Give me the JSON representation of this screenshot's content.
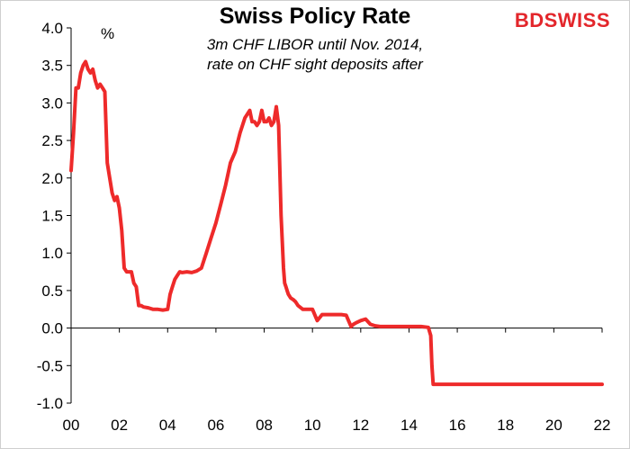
{
  "title": "Swiss Policy Rate",
  "subtitle_line1": "3m CHF LIBOR until Nov. 2014,",
  "subtitle_line2": "rate on CHF sight deposits after",
  "logo": {
    "part1": "BD",
    "part2": "SWISS"
  },
  "chart_data": {
    "type": "line",
    "title": "Swiss Policy Rate",
    "ylabel": "%",
    "xlabel": "",
    "xlim": [
      0,
      22
    ],
    "ylim": [
      -1.0,
      4.0
    ],
    "x_ticks": [
      0,
      2,
      4,
      6,
      8,
      10,
      12,
      14,
      16,
      18,
      20,
      22
    ],
    "x_tick_labels": [
      "00",
      "02",
      "04",
      "06",
      "08",
      "10",
      "12",
      "14",
      "16",
      "18",
      "20",
      "22"
    ],
    "y_ticks": [
      -1.0,
      -0.5,
      0.0,
      0.5,
      1.0,
      1.5,
      2.0,
      2.5,
      3.0,
      3.5,
      4.0
    ],
    "y_tick_labels": [
      "-1.0",
      "-0.5",
      "0.0",
      "0.5",
      "1.0",
      "1.5",
      "2.0",
      "2.5",
      "3.0",
      "3.5",
      "4.0"
    ],
    "line_color": "#ee2a2a",
    "series": [
      {
        "name": "Swiss Policy Rate",
        "x": [
          0.0,
          0.1,
          0.2,
          0.3,
          0.4,
          0.5,
          0.6,
          0.7,
          0.8,
          0.9,
          1.0,
          1.1,
          1.2,
          1.3,
          1.4,
          1.5,
          1.6,
          1.7,
          1.8,
          1.9,
          2.0,
          2.1,
          2.2,
          2.3,
          2.4,
          2.5,
          2.6,
          2.7,
          2.8,
          2.9,
          3.0,
          3.2,
          3.4,
          3.6,
          3.8,
          4.0,
          4.1,
          4.2,
          4.3,
          4.4,
          4.5,
          4.6,
          4.8,
          5.0,
          5.2,
          5.4,
          5.6,
          5.8,
          6.0,
          6.2,
          6.4,
          6.6,
          6.8,
          7.0,
          7.2,
          7.4,
          7.5,
          7.6,
          7.7,
          7.8,
          7.9,
          8.0,
          8.1,
          8.2,
          8.3,
          8.4,
          8.5,
          8.6,
          8.7,
          8.8,
          8.85,
          8.9,
          8.95,
          9.0,
          9.1,
          9.2,
          9.3,
          9.4,
          9.6,
          9.8,
          10.0,
          10.2,
          10.4,
          10.6,
          10.8,
          11.0,
          11.2,
          11.4,
          11.6,
          11.7,
          11.8,
          12.0,
          12.2,
          12.4,
          12.6,
          12.8,
          13.0,
          13.5,
          14.0,
          14.5,
          14.8,
          14.9,
          14.95,
          15.0,
          15.5,
          16.0,
          17.0,
          18.0,
          19.0,
          20.0,
          21.0,
          22.0
        ],
        "y": [
          2.1,
          2.6,
          3.2,
          3.2,
          3.4,
          3.5,
          3.55,
          3.45,
          3.4,
          3.45,
          3.3,
          3.2,
          3.25,
          3.2,
          3.15,
          2.2,
          2.0,
          1.8,
          1.7,
          1.75,
          1.6,
          1.3,
          0.8,
          0.75,
          0.75,
          0.75,
          0.6,
          0.55,
          0.3,
          0.3,
          0.28,
          0.27,
          0.25,
          0.25,
          0.24,
          0.25,
          0.45,
          0.55,
          0.65,
          0.7,
          0.75,
          0.74,
          0.75,
          0.74,
          0.76,
          0.8,
          1.0,
          1.2,
          1.4,
          1.65,
          1.9,
          2.2,
          2.35,
          2.6,
          2.8,
          2.9,
          2.75,
          2.75,
          2.7,
          2.75,
          2.9,
          2.75,
          2.75,
          2.8,
          2.7,
          2.75,
          2.95,
          2.7,
          1.5,
          0.8,
          0.6,
          0.55,
          0.5,
          0.45,
          0.4,
          0.38,
          0.35,
          0.3,
          0.25,
          0.25,
          0.25,
          0.1,
          0.18,
          0.18,
          0.18,
          0.18,
          0.18,
          0.17,
          0.02,
          0.05,
          0.07,
          0.1,
          0.12,
          0.05,
          0.03,
          0.02,
          0.02,
          0.02,
          0.02,
          0.02,
          0.01,
          -0.1,
          -0.5,
          -0.75,
          -0.75,
          -0.75,
          -0.75,
          -0.75,
          -0.75,
          -0.75,
          -0.75,
          -0.75
        ]
      }
    ]
  }
}
